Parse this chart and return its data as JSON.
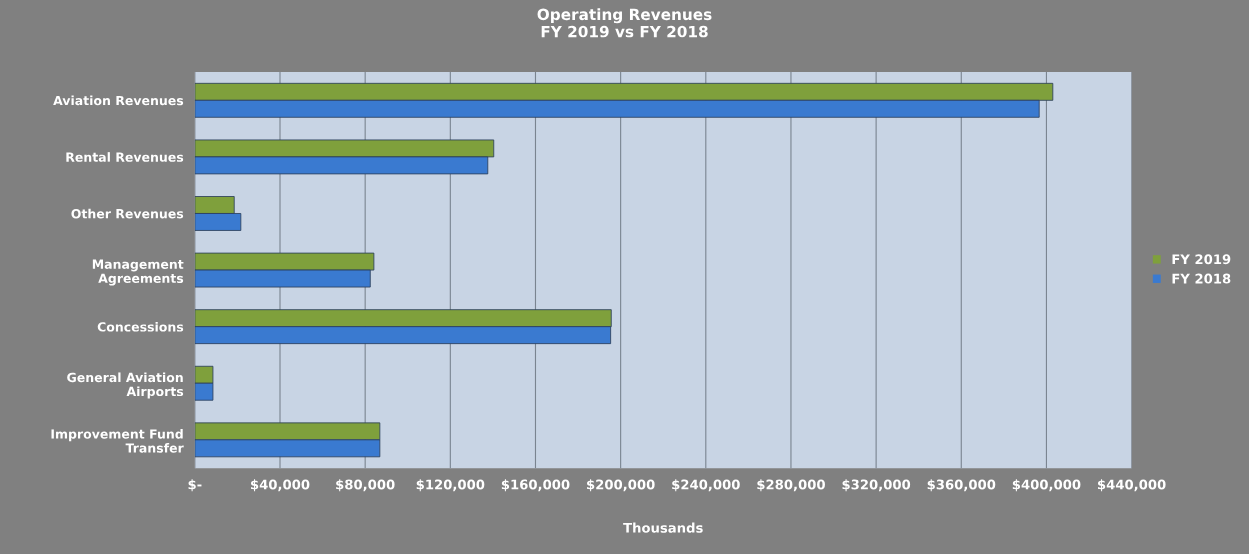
{
  "chart_data": {
    "type": "bar",
    "orientation": "horizontal",
    "title": "Operating Revenues\nFY 2019 vs FY 2018",
    "xlabel": "Thousands",
    "categories": [
      "Aviation Revenues",
      "Rental Revenues",
      "Other Revenues",
      "Management\nAgreements",
      "Concessions",
      "General Aviation\nAirports",
      "Improvement Fund\nTransfer"
    ],
    "series": [
      {
        "name": "FY 2019",
        "color": "#7fa03c",
        "values": [
          403000,
          140400,
          18500,
          84100,
          195600,
          8500,
          86900
        ]
      },
      {
        "name": "FY 2018",
        "color": "#3a7ad0",
        "values": [
          396600,
          137600,
          21600,
          82400,
          195300,
          8500,
          86900
        ]
      }
    ],
    "xlim": [
      0,
      440000
    ],
    "xticks": [
      {
        "value": 0,
        "label": "$-"
      },
      {
        "value": 40000,
        "label": "$40,000"
      },
      {
        "value": 80000,
        "label": "$80,000"
      },
      {
        "value": 120000,
        "label": "$120,000"
      },
      {
        "value": 160000,
        "label": "$160,000"
      },
      {
        "value": 200000,
        "label": "$200,000"
      },
      {
        "value": 240000,
        "label": "$240,000"
      },
      {
        "value": 280000,
        "label": "$280,000"
      },
      {
        "value": 320000,
        "label": "$320,000"
      },
      {
        "value": 360000,
        "label": "$360,000"
      },
      {
        "value": 400000,
        "label": "$400,000"
      },
      {
        "value": 440000,
        "label": "$440,000"
      }
    ],
    "grid": "x",
    "legend": "right"
  }
}
